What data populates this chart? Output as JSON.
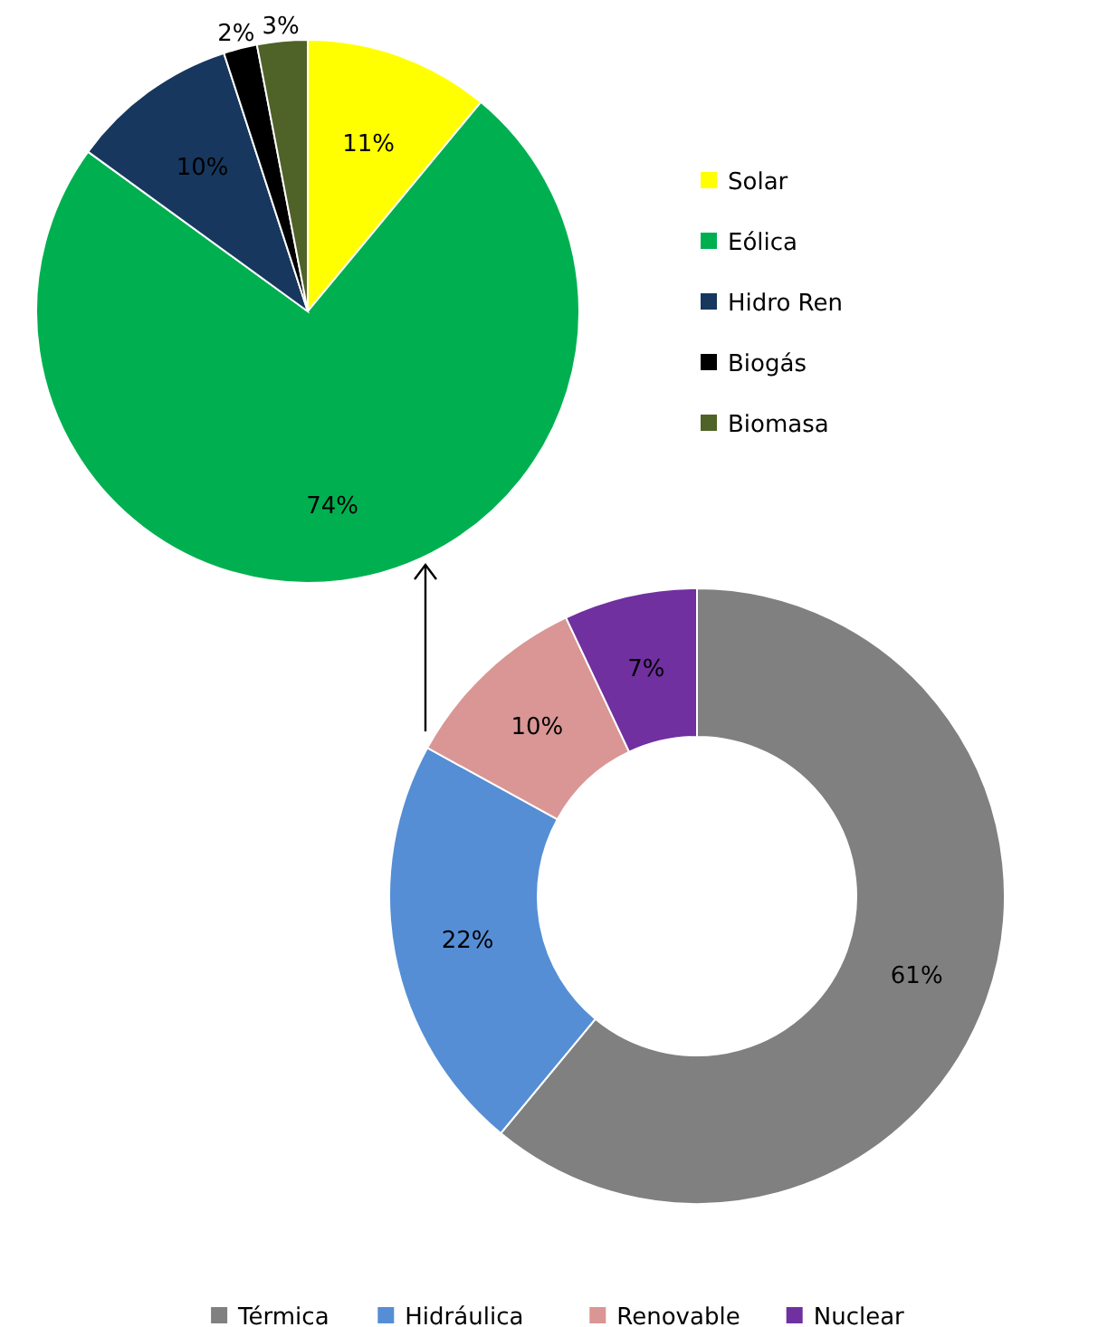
{
  "chart_data": [
    {
      "type": "pie",
      "categories": [
        "Solar",
        "Eólica",
        "Hidro Ren",
        "Biogás",
        "Biomasa"
      ],
      "values": [
        11,
        74,
        10,
        2,
        3
      ],
      "colors": [
        "#ffff00",
        "#00b050",
        "#17375e",
        "#000000",
        "#4f6228"
      ],
      "value_labels": [
        "11%",
        "74%",
        "10%",
        "2%",
        "3%"
      ],
      "legend": "right"
    },
    {
      "type": "donut",
      "categories": [
        "Térmica",
        "Hidráulica",
        "Renovable",
        "Nuclear"
      ],
      "values": [
        61,
        22,
        10,
        7
      ],
      "colors": [
        "#808080",
        "#558ed5",
        "#d99694",
        "#7030a0"
      ],
      "value_labels": [
        "61%",
        "22%",
        "10%",
        "7%"
      ],
      "legend": "bottom"
    }
  ]
}
